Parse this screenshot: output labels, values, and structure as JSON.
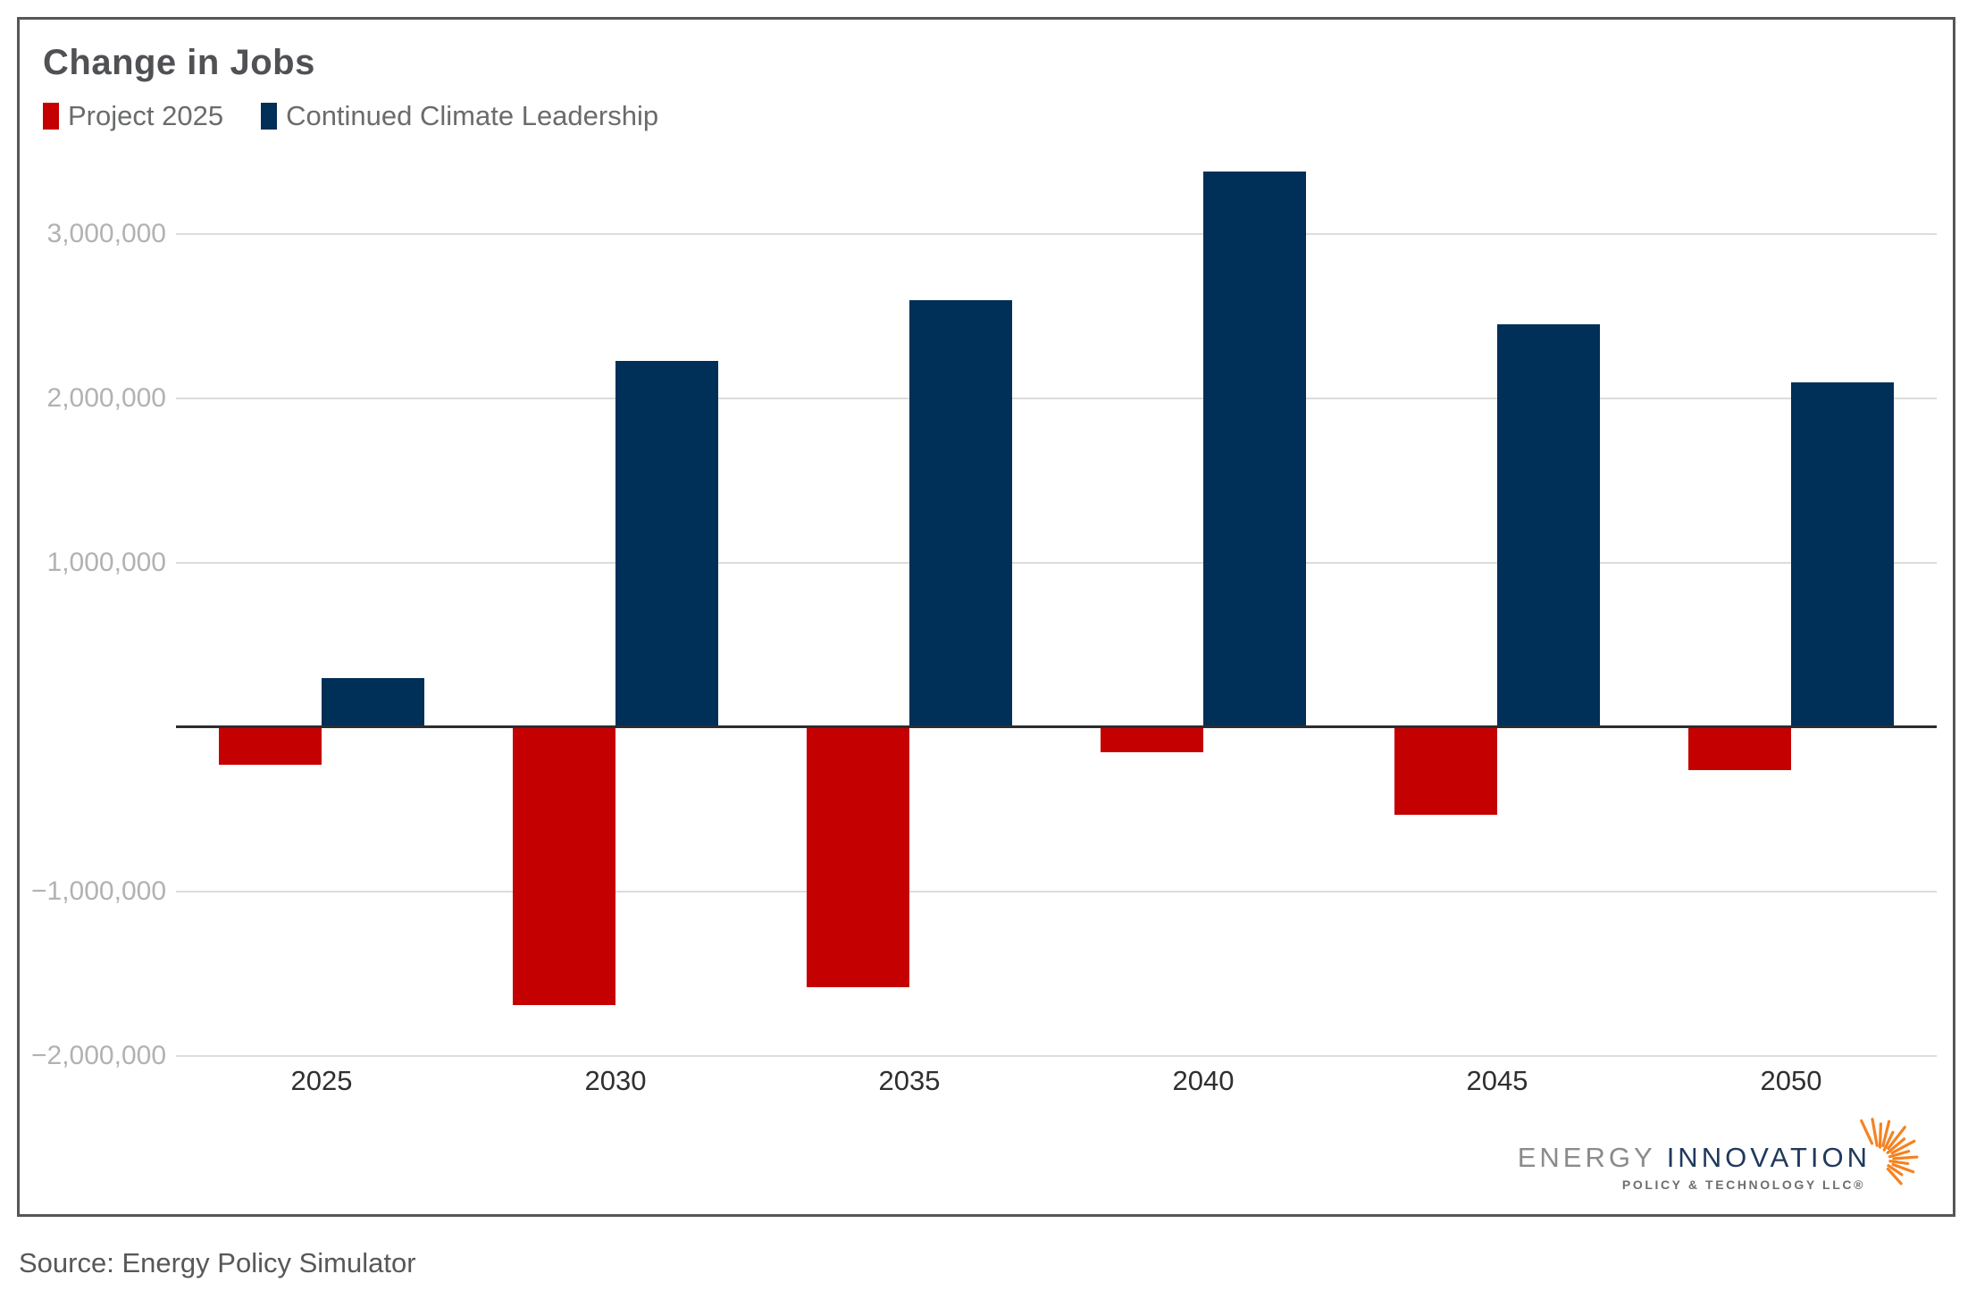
{
  "card": {
    "title": "Change in Jobs"
  },
  "chart_data": {
    "type": "bar",
    "title": "Change in Jobs",
    "categories": [
      "2025",
      "2030",
      "2035",
      "2040",
      "2045",
      "2050"
    ],
    "series": [
      {
        "name": "Project 2025",
        "color": "#c40000",
        "values": [
          -230000,
          -1690000,
          -1580000,
          -150000,
          -530000,
          -260000
        ]
      },
      {
        "name": "Continued Climate Leadership",
        "color": "#002f57",
        "values": [
          300000,
          2230000,
          2600000,
          3380000,
          2450000,
          2100000
        ]
      }
    ],
    "y_ticks": [
      {
        "label": "3,000,000",
        "value": 3000000
      },
      {
        "label": "2,000,000",
        "value": 2000000
      },
      {
        "label": "1,000,000",
        "value": 1000000
      },
      {
        "label": "−1,000,000",
        "value": -1000000
      },
      {
        "label": "−2,000,000",
        "value": -2000000
      }
    ],
    "ylim": [
      -2000000,
      3500000
    ],
    "grid": true,
    "zero_axis": true,
    "legend_position": "top-left"
  },
  "footer": {
    "source": "Source: Energy Policy Simulator"
  },
  "logo": {
    "word1": "ENERGY ",
    "word2": "INNOVATION",
    "tagline": "POLICY & TECHNOLOGY LLC®",
    "accent_color": "#f58220",
    "burst_icon": "sunburst-icon"
  },
  "colors": {
    "project_2025": "#c40000",
    "continued_climate_leadership": "#002f57",
    "gridline": "#dcdcdc",
    "zero_axis": "#2b2d30",
    "card_border": "#55565a"
  }
}
